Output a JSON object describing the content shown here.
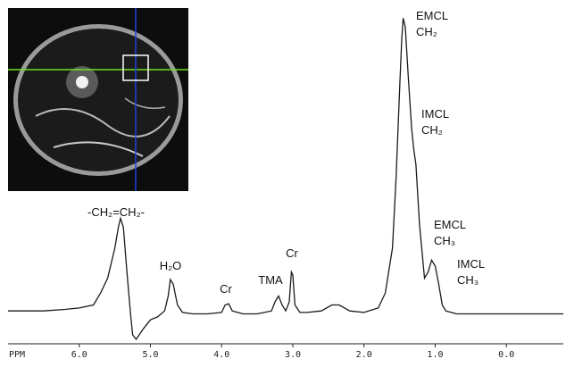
{
  "chart_data": {
    "type": "line",
    "x_label": "PPM",
    "x": [
      7.0,
      6.5,
      6.2,
      6.0,
      5.8,
      5.7,
      5.6,
      5.5,
      5.45,
      5.42,
      5.38,
      5.33,
      5.28,
      5.25,
      5.2,
      5.1,
      5.0,
      4.9,
      4.8,
      4.75,
      4.72,
      4.68,
      4.62,
      4.55,
      4.4,
      4.2,
      4.0,
      3.95,
      3.9,
      3.85,
      3.7,
      3.5,
      3.3,
      3.25,
      3.2,
      3.15,
      3.1,
      3.05,
      3.02,
      3.0,
      2.97,
      2.9,
      2.8,
      2.6,
      2.45,
      2.35,
      2.2,
      2.0,
      1.8,
      1.7,
      1.6,
      1.55,
      1.5,
      1.47,
      1.45,
      1.42,
      1.38,
      1.33,
      1.3,
      1.27,
      1.22,
      1.15,
      1.1,
      1.05,
      1.0,
      0.95,
      0.9,
      0.85,
      0.7,
      0.4,
      0.0,
      -0.5,
      -0.8
    ],
    "values": [
      1,
      1,
      1.5,
      2,
      3,
      7,
      12,
      22,
      29,
      32,
      29,
      14,
      0,
      -7,
      -8.5,
      -5,
      -2,
      -1,
      1,
      6,
      11.5,
      10,
      3,
      0.5,
      0,
      0,
      0.5,
      3,
      3.4,
      1,
      0,
      0,
      1,
      4,
      6,
      3,
      1,
      4,
      14,
      13,
      3,
      0.5,
      0.5,
      1,
      3,
      3,
      1,
      0.5,
      2,
      7,
      22,
      45,
      75,
      92,
      99,
      96,
      80,
      62,
      55,
      50,
      30,
      12,
      14,
      18,
      16,
      10,
      3,
      1,
      0,
      0,
      0,
      0,
      0
    ],
    "color": "#1a1a1a",
    "xlim": [
      7.0,
      -0.8
    ],
    "ylim": [
      -10,
      100
    ],
    "xticks": [
      {
        "value": 6,
        "label": "6.0"
      },
      {
        "value": 5,
        "label": "5.0"
      },
      {
        "value": 4,
        "label": "4.0"
      },
      {
        "value": 3,
        "label": "3.0"
      },
      {
        "value": 2,
        "label": "2.0"
      },
      {
        "value": 1,
        "label": "1.0"
      },
      {
        "value": 0,
        "label": "0.0"
      }
    ],
    "annotations": [
      [
        "-CH₂=CH₂-"
      ],
      [
        "H₂O"
      ],
      [
        "Cr"
      ],
      [
        "TMA"
      ],
      [
        "Cr"
      ],
      [
        "EMCL",
        "CH₂"
      ],
      [
        "IMCL",
        "CH₂"
      ],
      [
        "EMCL",
        "CH₃"
      ],
      [
        "IMCL",
        "CH₃"
      ]
    ]
  }
}
